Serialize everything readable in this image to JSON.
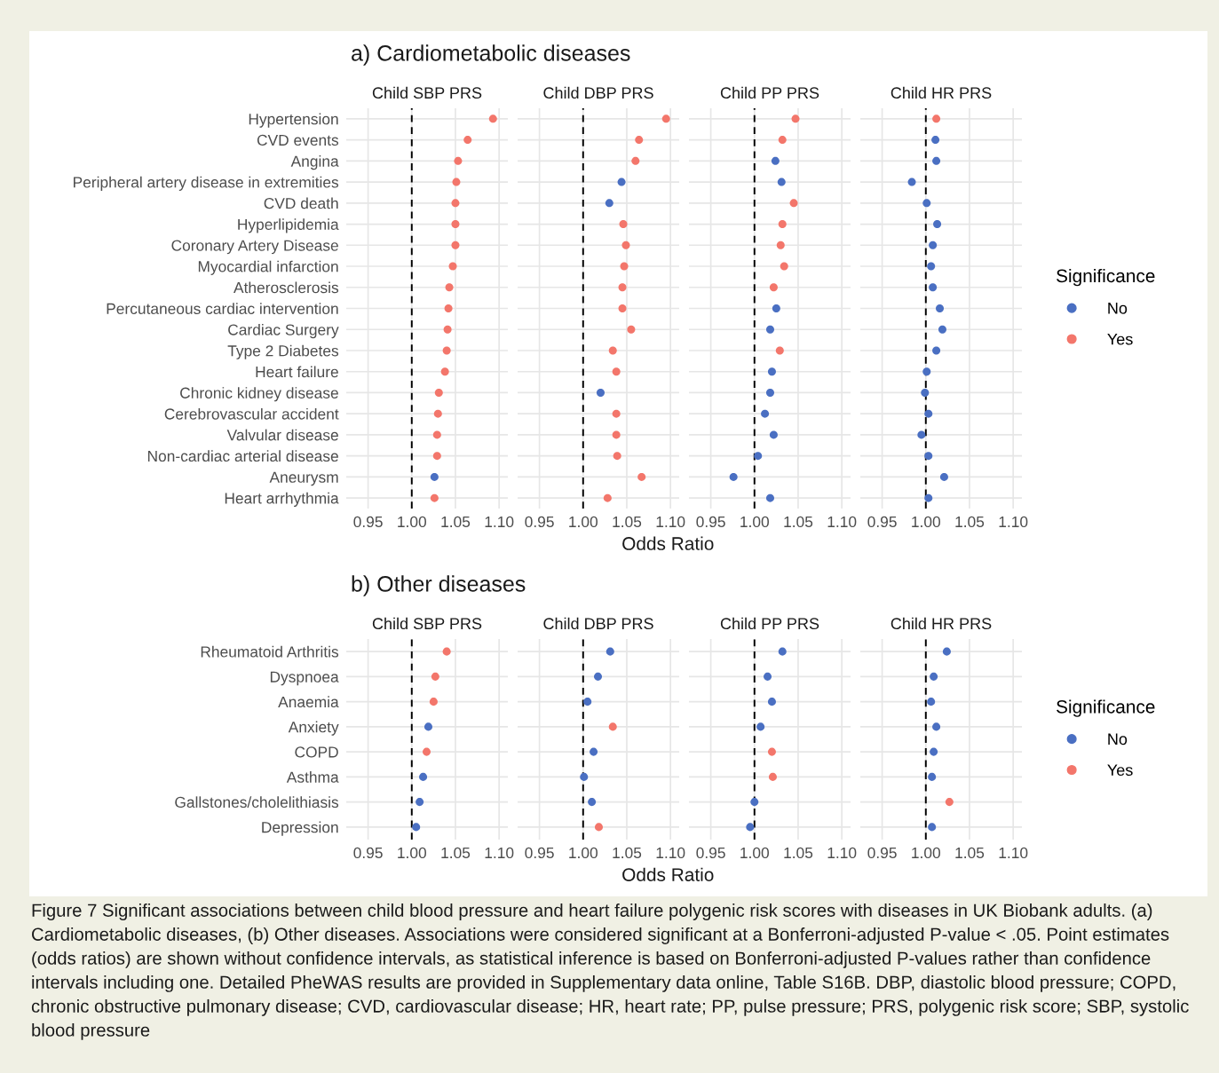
{
  "chart_data": [
    {
      "type": "scatter",
      "orientation": "horizontal",
      "title": "Child SBP PRS",
      "annotations": [
        "a) Cardiometabolic diseases"
      ],
      "categories": [
        "Hypertension",
        "CVD events",
        "Angina",
        "Peripheral artery disease in extremities",
        "CVD death",
        "Hyperlipidemia",
        "Coronary Artery Disease",
        "Myocardial infarction",
        "Atherosclerosis",
        "Percutaneous cardiac intervention",
        "Cardiac Surgery",
        "Type 2 Diabetes",
        "Heart failure",
        "Chronic kidney disease",
        "Cerebrovascular accident",
        "Valvular disease",
        "Non-cardiac arterial disease",
        "Aneurysm",
        "Heart arrhythmia"
      ],
      "series": [
        {
          "color": "#4a6fc2",
          "values": [
            null,
            null,
            null,
            null,
            null,
            null,
            null,
            null,
            null,
            null,
            null,
            null,
            null,
            null,
            null,
            null,
            null,
            1.026,
            null
          ]
        },
        {
          "color": "#f3766b",
          "values": [
            1.093,
            1.064,
            1.053,
            1.051,
            1.05,
            1.05,
            1.05,
            1.047,
            1.043,
            1.042,
            1.041,
            1.04,
            1.038,
            1.031,
            1.03,
            1.029,
            1.029,
            null,
            1.026
          ]
        }
      ],
      "xlim": [
        0.925,
        1.11
      ],
      "xticks": [
        {
          "value": 0.95,
          "label": "0.95"
        },
        {
          "value": 1.0,
          "label": "1.00"
        },
        {
          "value": 1.05,
          "label": "1.05"
        },
        {
          "value": 1.1,
          "label": "1.10"
        }
      ],
      "ref_lines": [
        {
          "axis": "x",
          "value": 1.0,
          "color": "#000000",
          "line_style": "dashed"
        }
      ],
      "grid": true,
      "marker": "circle"
    },
    {
      "type": "scatter",
      "orientation": "horizontal",
      "title": "Child DBP PRS",
      "xlabel": "Odds Ratio",
      "categories": [
        null,
        null,
        null,
        null,
        null,
        null,
        null,
        null,
        null,
        null,
        null,
        null,
        null,
        null,
        null,
        null,
        null,
        null,
        null
      ],
      "series": [
        {
          "color": "#4a6fc2",
          "values": [
            null,
            null,
            null,
            1.044,
            1.03,
            null,
            null,
            null,
            null,
            null,
            null,
            null,
            null,
            1.02,
            null,
            null,
            null,
            null,
            null
          ]
        },
        {
          "color": "#f3766b",
          "values": [
            1.095,
            1.064,
            1.06,
            null,
            null,
            1.046,
            1.049,
            1.047,
            1.045,
            1.045,
            1.055,
            1.034,
            1.038,
            null,
            1.038,
            1.038,
            1.039,
            1.067,
            1.028
          ]
        }
      ],
      "xlim": [
        0.925,
        1.11
      ],
      "xticks": [
        {
          "value": 0.95,
          "label": "0.95"
        },
        {
          "value": 1.0,
          "label": "1.00"
        },
        {
          "value": 1.05,
          "label": "1.05"
        },
        {
          "value": 1.1,
          "label": "1.10"
        }
      ],
      "ref_lines": [
        {
          "axis": "x",
          "value": 1.0,
          "color": "#000000",
          "line_style": "dashed"
        }
      ],
      "grid": true,
      "marker": "circle"
    },
    {
      "type": "scatter",
      "orientation": "horizontal",
      "title": "Child PP PRS",
      "categories": [
        null,
        null,
        null,
        null,
        null,
        null,
        null,
        null,
        null,
        null,
        null,
        null,
        null,
        null,
        null,
        null,
        null,
        null,
        null
      ],
      "series": [
        {
          "color": "#4a6fc2",
          "values": [
            null,
            null,
            1.024,
            1.031,
            null,
            null,
            null,
            null,
            null,
            1.025,
            1.018,
            null,
            1.02,
            1.018,
            1.012,
            1.022,
            1.004,
            0.976,
            1.018
          ]
        },
        {
          "color": "#f3766b",
          "values": [
            1.047,
            1.032,
            null,
            null,
            1.045,
            1.032,
            1.03,
            1.034,
            1.022,
            null,
            null,
            1.029,
            null,
            null,
            null,
            null,
            null,
            null,
            null
          ]
        }
      ],
      "xlim": [
        0.925,
        1.11
      ],
      "xticks": [
        {
          "value": 0.95,
          "label": "0.95"
        },
        {
          "value": 1.0,
          "label": "1.00"
        },
        {
          "value": 1.05,
          "label": "1.05"
        },
        {
          "value": 1.1,
          "label": "1.10"
        }
      ],
      "ref_lines": [
        {
          "axis": "x",
          "value": 1.0,
          "color": "#000000",
          "line_style": "dashed"
        }
      ],
      "grid": true,
      "marker": "circle"
    },
    {
      "type": "scatter",
      "orientation": "horizontal",
      "title": "Child HR PRS",
      "legend": "right",
      "legend_title": "Significance",
      "categories": [
        null,
        null,
        null,
        null,
        null,
        null,
        null,
        null,
        null,
        null,
        null,
        null,
        null,
        null,
        null,
        null,
        null,
        null,
        null
      ],
      "series": [
        {
          "name": "No",
          "color": "#4a6fc2",
          "values": [
            null,
            1.011,
            1.012,
            0.984,
            1.001,
            1.013,
            1.008,
            1.006,
            1.008,
            1.016,
            1.019,
            1.012,
            1.001,
            0.999,
            1.003,
            0.995,
            1.003,
            1.021,
            1.003
          ]
        },
        {
          "name": "Yes",
          "color": "#f3766b",
          "values": [
            1.012,
            null,
            null,
            null,
            null,
            null,
            null,
            null,
            null,
            null,
            null,
            null,
            null,
            null,
            null,
            null,
            null,
            null,
            null
          ]
        }
      ],
      "xlim": [
        0.925,
        1.11
      ],
      "xticks": [
        {
          "value": 0.95,
          "label": "0.95"
        },
        {
          "value": 1.0,
          "label": "1.00"
        },
        {
          "value": 1.05,
          "label": "1.05"
        },
        {
          "value": 1.1,
          "label": "1.10"
        }
      ],
      "ref_lines": [
        {
          "axis": "x",
          "value": 1.0,
          "color": "#000000",
          "line_style": "dashed"
        }
      ],
      "grid": true,
      "marker": "circle"
    },
    {
      "type": "scatter",
      "orientation": "horizontal",
      "title": "Child SBP PRS",
      "annotations": [
        "b) Other diseases",
        "Figure 7 Significant associations between child blood pressure and heart failure polygenic risk scores with diseases in UK Biobank adults. (a) Cardiometabolic diseases, (b) Other diseases. Associations were considered significant at a Bonferroni-adjusted P-value < .05. Point estimates (odds ratios) are shown without confidence intervals, as statistical inference is based on Bonferroni-adjusted P-values rather than confidence intervals including one. Detailed PheWAS results are provided in Supplementary data online, Table S16B. DBP, diastolic blood pressure; COPD, chronic obstructive pulmonary disease; CVD, cardiovascular disease; HR, heart rate; PP, pulse pressure; PRS, polygenic risk score; SBP, systolic blood pressure"
      ],
      "categories": [
        "Rheumatoid Arthritis",
        "Dyspnoea",
        "Anaemia",
        "Anxiety",
        "COPD",
        "Asthma",
        "Gallstones/cholelithiasis",
        "Depression"
      ],
      "series": [
        {
          "color": "#4a6fc2",
          "values": [
            null,
            null,
            null,
            1.019,
            null,
            1.013,
            1.009,
            1.005
          ]
        },
        {
          "color": "#f3766b",
          "values": [
            1.04,
            1.027,
            1.025,
            null,
            1.017,
            null,
            null,
            null
          ]
        }
      ],
      "xlim": [
        0.925,
        1.11
      ],
      "xticks": [
        {
          "value": 0.95,
          "label": "0.95"
        },
        {
          "value": 1.0,
          "label": "1.00"
        },
        {
          "value": 1.05,
          "label": "1.05"
        },
        {
          "value": 1.1,
          "label": "1.10"
        }
      ],
      "ref_lines": [
        {
          "axis": "x",
          "value": 1.0,
          "color": "#000000",
          "line_style": "dashed"
        }
      ],
      "grid": true,
      "marker": "circle"
    },
    {
      "type": "scatter",
      "orientation": "horizontal",
      "title": "Child DBP PRS",
      "xlabel": "Odds Ratio",
      "categories": [
        null,
        null,
        null,
        null,
        null,
        null,
        null,
        null
      ],
      "series": [
        {
          "color": "#4a6fc2",
          "values": [
            1.031,
            1.017,
            1.005,
            null,
            1.012,
            1.001,
            1.01,
            null
          ]
        },
        {
          "color": "#f3766b",
          "values": [
            null,
            null,
            null,
            1.034,
            null,
            null,
            null,
            1.018
          ]
        }
      ],
      "xlim": [
        0.925,
        1.11
      ],
      "xticks": [
        {
          "value": 0.95,
          "label": "0.95"
        },
        {
          "value": 1.0,
          "label": "1.00"
        },
        {
          "value": 1.05,
          "label": "1.05"
        },
        {
          "value": 1.1,
          "label": "1.10"
        }
      ],
      "ref_lines": [
        {
          "axis": "x",
          "value": 1.0,
          "color": "#000000",
          "line_style": "dashed"
        }
      ],
      "grid": true,
      "marker": "circle"
    },
    {
      "type": "scatter",
      "orientation": "horizontal",
      "title": "Child PP PRS",
      "categories": [
        null,
        null,
        null,
        null,
        null,
        null,
        null,
        null
      ],
      "series": [
        {
          "color": "#4a6fc2",
          "values": [
            1.032,
            1.015,
            1.02,
            1.007,
            null,
            null,
            1.0,
            0.995
          ]
        },
        {
          "color": "#f3766b",
          "values": [
            null,
            null,
            null,
            null,
            1.02,
            1.021,
            null,
            null
          ]
        }
      ],
      "xlim": [
        0.925,
        1.11
      ],
      "xticks": [
        {
          "value": 0.95,
          "label": "0.95"
        },
        {
          "value": 1.0,
          "label": "1.00"
        },
        {
          "value": 1.05,
          "label": "1.05"
        },
        {
          "value": 1.1,
          "label": "1.10"
        }
      ],
      "ref_lines": [
        {
          "axis": "x",
          "value": 1.0,
          "color": "#000000",
          "line_style": "dashed"
        }
      ],
      "grid": true,
      "marker": "circle"
    },
    {
      "type": "scatter",
      "orientation": "horizontal",
      "title": "Child HR PRS",
      "legend": "right",
      "legend_title": "Significance",
      "categories": [
        null,
        null,
        null,
        null,
        null,
        null,
        null,
        null
      ],
      "series": [
        {
          "name": "No",
          "color": "#4a6fc2",
          "values": [
            1.024,
            1.009,
            1.006,
            1.012,
            1.009,
            1.007,
            null,
            1.007
          ]
        },
        {
          "name": "Yes",
          "color": "#f3766b",
          "values": [
            null,
            null,
            null,
            null,
            null,
            null,
            1.027,
            null
          ]
        }
      ],
      "xlim": [
        0.925,
        1.11
      ],
      "xticks": [
        {
          "value": 0.95,
          "label": "0.95"
        },
        {
          "value": 1.0,
          "label": "1.00"
        },
        {
          "value": 1.05,
          "label": "1.05"
        },
        {
          "value": 1.1,
          "label": "1.10"
        }
      ],
      "ref_lines": [
        {
          "axis": "x",
          "value": 1.0,
          "color": "#000000",
          "line_style": "dashed"
        }
      ],
      "grid": true,
      "marker": "circle"
    }
  ]
}
